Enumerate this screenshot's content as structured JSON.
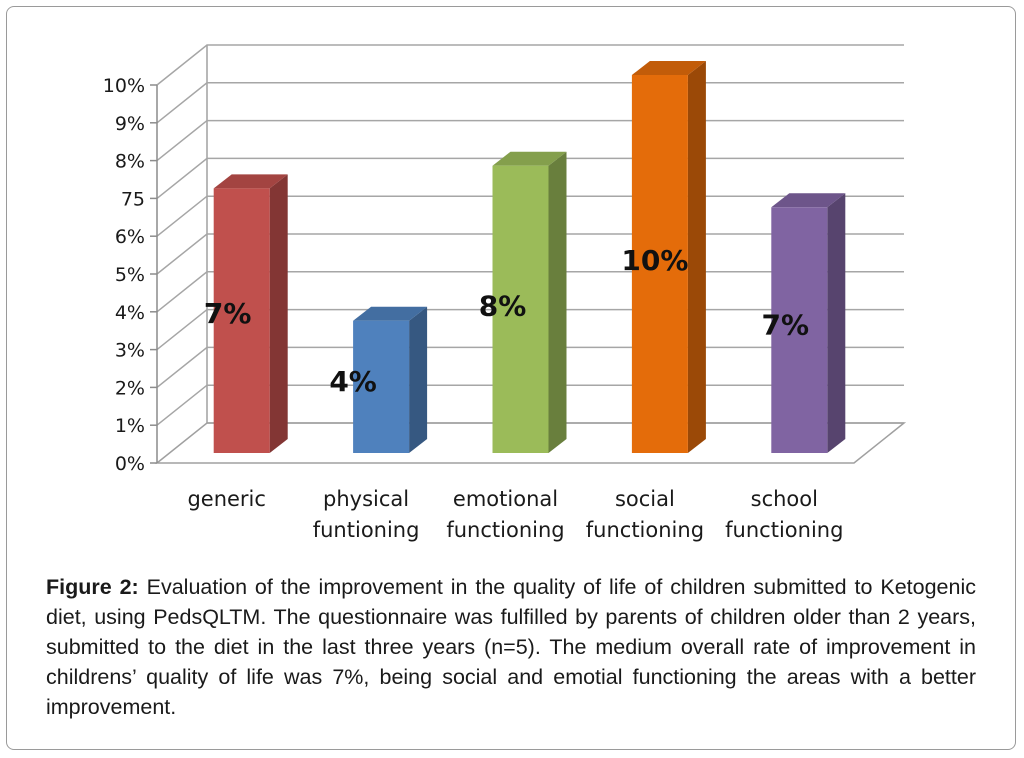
{
  "chart_data": {
    "type": "bar",
    "style": "3d-column",
    "categories": [
      [
        "generic"
      ],
      [
        "physical",
        "funtioning"
      ],
      [
        "emotional",
        "functioning"
      ],
      [
        "social",
        "functioning"
      ],
      [
        "school",
        "functioning"
      ]
    ],
    "values": [
      7,
      3.5,
      7.6,
      10,
      6.5
    ],
    "data_labels": [
      "7%",
      "4%",
      "8%",
      "10%",
      "7%"
    ],
    "colors": [
      "#c0504d",
      "#4f81bd",
      "#9bbb59",
      "#e46c0a",
      "#8064a2"
    ],
    "ytick_labels": [
      "0%",
      "1%",
      "2%",
      "3%",
      "4%",
      "5%",
      "6%",
      "75",
      "8%",
      "9%",
      "10%"
    ],
    "ylim": [
      0,
      10
    ],
    "grid": true,
    "title": "",
    "xlabel": "",
    "ylabel": ""
  },
  "caption": {
    "label": "Figure 2:",
    "text": " Evaluation of the improvement in the quality of life of children submitted to Ketogenic diet, using PedsQLTM. The questionnaire was fulfilled by parents of children older than 2 years, submitted to the diet in the last three years (n=5). The medium overall rate of improvement in childrens’ quality of life was 7%, being social and emotial functioning the areas with a better improvement."
  }
}
